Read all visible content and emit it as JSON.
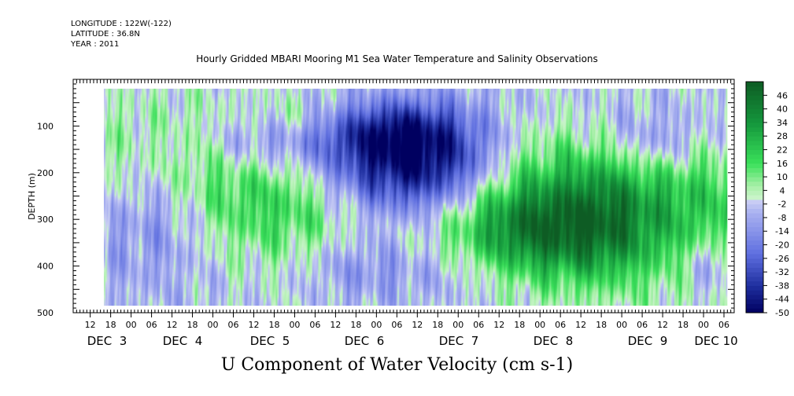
{
  "header": {
    "longitude": "LONGITUDE : 122W(-122)",
    "latitude": "LATITUDE : 36.8N",
    "year": "YEAR : 2011",
    "title": "Hourly Gridded MBARI Mooring M1 Sea Water Temperature and Salinity Observations"
  },
  "chart_data": {
    "type": "heatmap",
    "title": "Hourly Gridded MBARI Mooring M1 Sea Water Temperature and Salinity Observations",
    "bottom_title": "U Component of Water Velocity (cm s-1)",
    "ylabel": "DEPTH (m)",
    "xlabel": "",
    "ylim": [
      500,
      0
    ],
    "y_ticks": [
      "100",
      "200",
      "300",
      "400",
      "500"
    ],
    "x_hour_ticks": [
      "12",
      "18",
      "00",
      "06",
      "12",
      "18",
      "00",
      "06",
      "12",
      "18",
      "00",
      "06",
      "12",
      "18",
      "00",
      "06",
      "12",
      "18",
      "00",
      "06",
      "12",
      "18",
      "00",
      "06",
      "12",
      "18",
      "00",
      "06",
      "12",
      "18",
      "00",
      "06"
    ],
    "x_day_labels": [
      "DEC  3",
      "DEC  4",
      "DEC  5",
      "DEC  6",
      "DEC  7",
      "DEC  8",
      "DEC  9",
      "DEC 10"
    ],
    "colorbar_levels": [
      "46",
      "40",
      "34",
      "28",
      "22",
      "16",
      "10",
      "4",
      "-2",
      "-8",
      "-14",
      "-20",
      "-26",
      "-32",
      "-38",
      "-44",
      "-50"
    ],
    "colorbar_range": [
      -50,
      52
    ],
    "time_range_hours": [
      "Dec 2 07:00",
      "Dec 10 09:00"
    ],
    "data_time_start": "Dec 2 16:00",
    "data_time_end": "Dec 10 07:00",
    "depth_range_m": [
      20,
      485
    ],
    "colors": {
      "neg_strong": "#1f2f9f",
      "neg_mid": "#5f6fe0",
      "neg_weak": "#a8b0f0",
      "pos_weak": "#a8f0a8",
      "pos_mid": "#3ae05a",
      "pos_strong": "#0e5c24"
    }
  }
}
